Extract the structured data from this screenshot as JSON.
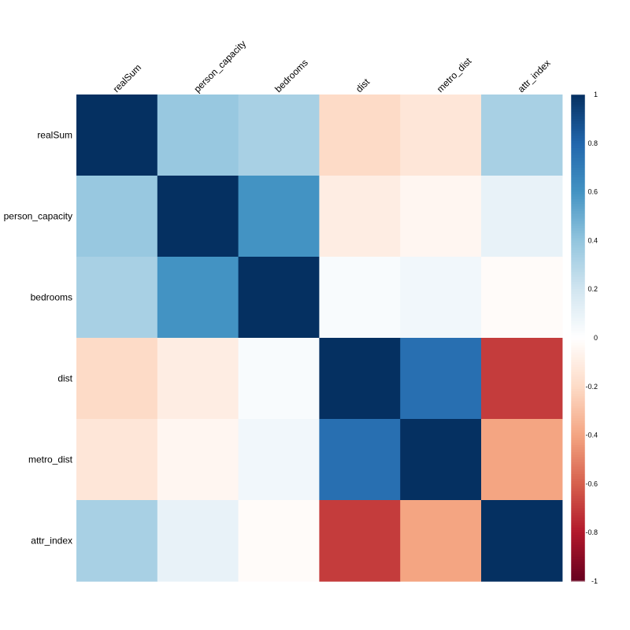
{
  "chart_data": {
    "type": "heatmap",
    "title": "",
    "variables": [
      "realSum",
      "person_capacity",
      "bedrooms",
      "dist",
      "metro_dist",
      "attr_index"
    ],
    "matrix": [
      [
        1.0,
        0.38,
        0.33,
        -0.2,
        -0.14,
        0.33
      ],
      [
        0.38,
        1.0,
        0.6,
        -0.1,
        -0.05,
        0.1
      ],
      [
        0.33,
        0.6,
        1.0,
        0.03,
        0.06,
        -0.02
      ],
      [
        -0.2,
        -0.1,
        0.03,
        1.0,
        0.76,
        -0.7
      ],
      [
        -0.14,
        -0.05,
        0.06,
        0.76,
        1.0,
        -0.4
      ],
      [
        0.33,
        0.1,
        -0.02,
        -0.7,
        -0.4,
        1.0
      ]
    ],
    "colorbar": {
      "range": [
        -1,
        1
      ],
      "ticks": [
        "1",
        "0.8",
        "0.6",
        "0.4",
        "0.2",
        "0",
        "-0.2",
        "-0.4",
        "-0.6",
        "-0.8",
        "-1"
      ]
    },
    "grid": false,
    "legend_position": "right"
  }
}
